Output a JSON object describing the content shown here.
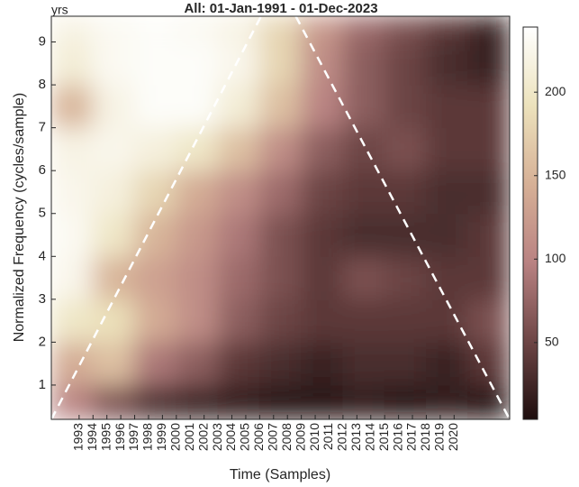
{
  "chart_data": {
    "type": "heatmap",
    "title": "All: 01-Jan-1991 - 01-Dec-2023",
    "x_label": "Time (Samples)",
    "y_label": "Normalized Frequency (cycles/sample)",
    "y_unit": "yrs",
    "xlim": [
      1991,
      2024
    ],
    "ylim": [
      0.2,
      9.6
    ],
    "xticks": [
      1993,
      1994,
      1995,
      1996,
      1997,
      1998,
      1999,
      2000,
      2001,
      2002,
      2003,
      2004,
      2005,
      2006,
      2007,
      2008,
      2009,
      2010,
      2011,
      2012,
      2013,
      2014,
      2015,
      2016,
      2017,
      2018,
      2019,
      2020
    ],
    "yticks": [
      1,
      2,
      3,
      4,
      5,
      6,
      7,
      8,
      9
    ],
    "xbins": [
      1991,
      1994,
      1997,
      2000,
      2003,
      2006,
      2009,
      2012,
      2015,
      2018,
      2021,
      2024
    ],
    "ybins": [
      0.2,
      1,
      2,
      3,
      4,
      5,
      6,
      7,
      8,
      9,
      9.6
    ],
    "z": [
      [
        100,
        60,
        30,
        20,
        15,
        10,
        10,
        15,
        10,
        15,
        10
      ],
      [
        140,
        160,
        90,
        70,
        40,
        30,
        20,
        30,
        30,
        20,
        40
      ],
      [
        200,
        190,
        140,
        110,
        70,
        50,
        40,
        40,
        40,
        40,
        60
      ],
      [
        225,
        150,
        130,
        110,
        80,
        60,
        40,
        60,
        50,
        40,
        40
      ],
      [
        230,
        200,
        150,
        120,
        90,
        60,
        40,
        30,
        30,
        30,
        40
      ],
      [
        225,
        215,
        180,
        140,
        110,
        80,
        50,
        40,
        40,
        30,
        30
      ],
      [
        220,
        225,
        215,
        200,
        160,
        110,
        70,
        50,
        60,
        40,
        40
      ],
      [
        150,
        220,
        235,
        235,
        210,
        160,
        100,
        70,
        50,
        40,
        40
      ],
      [
        210,
        230,
        235,
        235,
        225,
        180,
        110,
        70,
        50,
        30,
        20
      ],
      [
        220,
        230,
        235,
        230,
        220,
        180,
        120,
        80,
        60,
        40,
        20
      ]
    ],
    "clim": [
      4,
      239
    ],
    "cticks": [
      50,
      100,
      150,
      200
    ],
    "colormap": [
      "#1e0e0e",
      "#6e4646",
      "#b98282",
      "#d6b096",
      "#ece2bc",
      "#ffffff"
    ],
    "coi": {
      "x": [
        1991,
        2006.1,
        null,
        2008.6,
        2024
      ],
      "y": [
        0.2,
        9.6,
        null,
        9.6,
        0.2
      ],
      "color": "#ffffff"
    }
  }
}
